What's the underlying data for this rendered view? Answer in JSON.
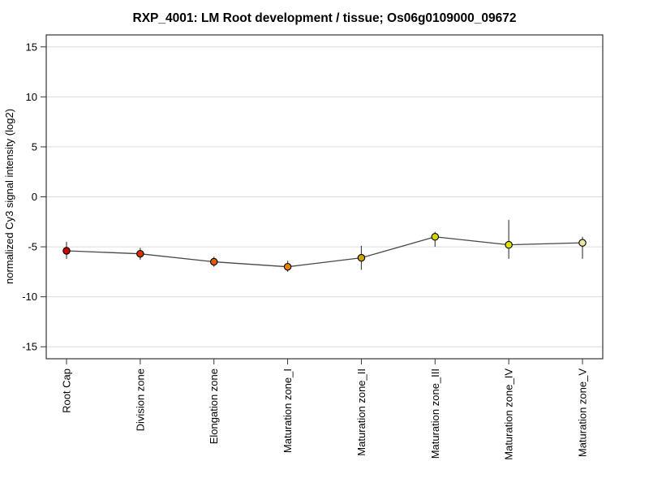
{
  "window": {
    "background": "#ffffff"
  },
  "chart_data": {
    "type": "line",
    "title": "RXP_4001: LM Root development / tissue; Os06g0109000_09672",
    "ylabel": "normalized Cy3 signal intensity (log2)",
    "xlabel": "",
    "categories": [
      "Root Cap",
      "Division zone",
      "Elongation zone",
      "Maturation zone_I",
      "Maturation zone_II",
      "Maturation zone_III",
      "Maturation zone_IV",
      "Maturation zone_V"
    ],
    "series": [
      {
        "name": "normalized Cy3 signal intensity (log2)",
        "values": [
          -5.4,
          -5.7,
          -6.5,
          -7.0,
          -6.1,
          -4.0,
          -4.8,
          -4.6
        ],
        "error_upper": [
          -4.5,
          -5.1,
          -6.0,
          -6.4,
          -4.9,
          -3.5,
          -2.3,
          -4.0
        ],
        "error_lower": [
          -6.2,
          -6.3,
          -7.0,
          -7.5,
          -7.3,
          -5.0,
          -6.2,
          -6.2
        ],
        "point_colors": [
          "#cc0000",
          "#d63000",
          "#e05c00",
          "#ea7c00",
          "#c9a400",
          "#d6d400",
          "#e2e000",
          "#e8e6a0"
        ]
      }
    ],
    "yticks": [
      -15,
      -10,
      -5,
      0,
      5,
      10,
      15
    ],
    "ylim": [
      -16.2,
      16.2
    ],
    "grid": true,
    "legend_position": "none",
    "colors": {
      "line": "#474747",
      "error_bar": "#474747",
      "grid": "#dcdcdc",
      "border": "#353535",
      "tick": "#353535",
      "point_stroke": "#000000",
      "text": "#000000"
    }
  }
}
